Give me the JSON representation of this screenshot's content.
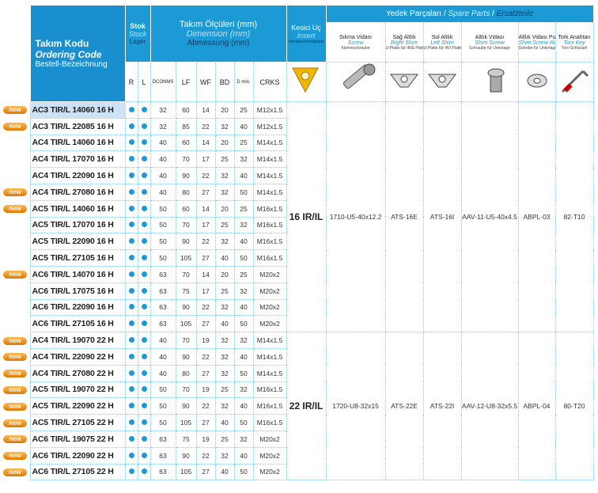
{
  "header": {
    "code": [
      "Takım Kodu",
      "Ordering Code",
      "Bestell-Bezeichnung"
    ],
    "stock": [
      "Stok",
      "Stock",
      "Lager"
    ],
    "dimensions": [
      "Takım Ölçüleri (mm)",
      "Dimension (mm)",
      "Abmessung (mm)"
    ],
    "insert": [
      "Kesici Uç",
      "Insert",
      "Wendeschneidplatte"
    ],
    "spare_parts": [
      "Yedek Parçaları",
      "Spare Parts",
      "Ersatzteile"
    ],
    "separator": "/",
    "spare_columns": [
      [
        "Sıkma Vidası",
        "Screw",
        "Klemmschraube"
      ],
      [
        "Sağ Altlık",
        "Right Shim",
        "U-Platte für IR/E Platte"
      ],
      [
        "Sol Altlık",
        "Left Shim",
        "U-Platte für IR/I Platte"
      ],
      [
        "Altlık Vidası",
        "Shim Screw",
        "Schraube für Unterlage"
      ],
      [
        "Altlık Vidası Pulu",
        "Shim Screw Ring",
        "Scheibe für Unterlage"
      ],
      [
        "Tork Anahtarı",
        "Torx Key",
        "Torx-Schlüssel"
      ]
    ],
    "columns": [
      "R",
      "L",
      "DCONMS",
      "LF",
      "WF",
      "BD",
      "D min.",
      "CRKS"
    ]
  },
  "groups": [
    {
      "insert": "16 IR/IL",
      "spares": [
        "1710-U5-40x12.2",
        "ATS-16E",
        "ATS-16I",
        "AAV-11-U5-40x4.5",
        "ABPL-03",
        "82-T10"
      ],
      "rows": [
        {
          "badge": "new",
          "code": "AC3 TIR/L 14060 16 H",
          "dims": [
            32,
            60,
            14,
            20,
            25,
            "M12x1.5"
          ]
        },
        {
          "badge": "new",
          "code": "AC3 TIR/L 22085 16 H",
          "dims": [
            32,
            85,
            22,
            32,
            40,
            "M12x1.5"
          ]
        },
        {
          "code": "AC4 TIR/L 14060 16 H",
          "dims": [
            40,
            60,
            14,
            20,
            25,
            "M14x1.5"
          ]
        },
        {
          "code": "AC4 TIR/L 17070 16 H",
          "dims": [
            40,
            70,
            17,
            25,
            32,
            "M14x1.5"
          ]
        },
        {
          "code": "AC4 TIR/L 22090 16 H",
          "dims": [
            40,
            90,
            22,
            32,
            40,
            "M14x1.5"
          ]
        },
        {
          "badge": "new",
          "code": "AC4 TIR/L 27080 16 H",
          "dims": [
            40,
            80,
            27,
            32,
            50,
            "M14x1.5"
          ]
        },
        {
          "badge": "new",
          "code": "AC5 TIR/L 14060 16 H",
          "dims": [
            50,
            60,
            14,
            20,
            25,
            "M16x1.5"
          ]
        },
        {
          "code": "AC5 TIR/L 17070 16 H",
          "dims": [
            50,
            70,
            17,
            25,
            32,
            "M16x1.5"
          ]
        },
        {
          "code": "AC5 TIR/L 22090 16 H",
          "dims": [
            50,
            90,
            22,
            32,
            40,
            "M16x1.5"
          ]
        },
        {
          "code": "AC5 TIR/L 27105 16 H",
          "dims": [
            50,
            105,
            27,
            40,
            50,
            "M16x1.5"
          ]
        },
        {
          "badge": "new",
          "code": "AC6 TIR/L 14070 16 H",
          "dims": [
            63,
            70,
            14,
            20,
            25,
            "M20x2"
          ]
        },
        {
          "code": "AC6 TIR/L 17075 16 H",
          "dims": [
            63,
            75,
            17,
            25,
            32,
            "M20x2"
          ]
        },
        {
          "code": "AC6 TIR/L 22090 16 H",
          "dims": [
            63,
            90,
            22,
            32,
            40,
            "M20x2"
          ]
        },
        {
          "code": "AC6 TIR/L 27105 16 H",
          "dims": [
            63,
            105,
            27,
            40,
            50,
            "M20x2"
          ]
        }
      ]
    },
    {
      "insert": "22 IR/IL",
      "spares": [
        "1720-U8-32x15",
        "ATS-22E",
        "ATS-22I",
        "AAV-12-U8-32x5.5",
        "ABPL-04",
        "80-T20"
      ],
      "rows": [
        {
          "badge": "new",
          "code": "AC4 TIR/L 19070 22 H",
          "dims": [
            40,
            70,
            19,
            32,
            32,
            "M14x1.5"
          ]
        },
        {
          "badge": "new",
          "code": "AC4 TIR/L 22090 22 H",
          "dims": [
            40,
            90,
            22,
            32,
            40,
            "M14x1.5"
          ]
        },
        {
          "badge": "new",
          "code": "AC4 TIR/L 27080 22 H",
          "dims": [
            40,
            80,
            27,
            32,
            50,
            "M14x1.5"
          ]
        },
        {
          "badge": "new",
          "code": "AC5 TIR/L 19070 22 H",
          "dims": [
            50,
            70,
            19,
            25,
            32,
            "M16x1.5"
          ]
        },
        {
          "badge": "new",
          "code": "AC5 TIR/L 22090 22 H",
          "dims": [
            50,
            90,
            22,
            32,
            40,
            "M16x1.5"
          ]
        },
        {
          "badge": "new",
          "code": "AC5 TIR/L 27105 22 H",
          "dims": [
            50,
            105,
            27,
            40,
            50,
            "M16x1.5"
          ]
        },
        {
          "badge": "new",
          "code": "AC6 TIR/L 19075 22 H",
          "dims": [
            63,
            75,
            19,
            25,
            32,
            "M20x2"
          ]
        },
        {
          "badge": "new",
          "code": "AC6 TIR/L 22090 22 H",
          "dims": [
            63,
            90,
            22,
            32,
            40,
            "M20x2"
          ]
        },
        {
          "badge": "new",
          "code": "AC6 TIR/L 27105 22 H",
          "dims": [
            63,
            105,
            27,
            40,
            50,
            "M20x2"
          ]
        }
      ]
    }
  ]
}
